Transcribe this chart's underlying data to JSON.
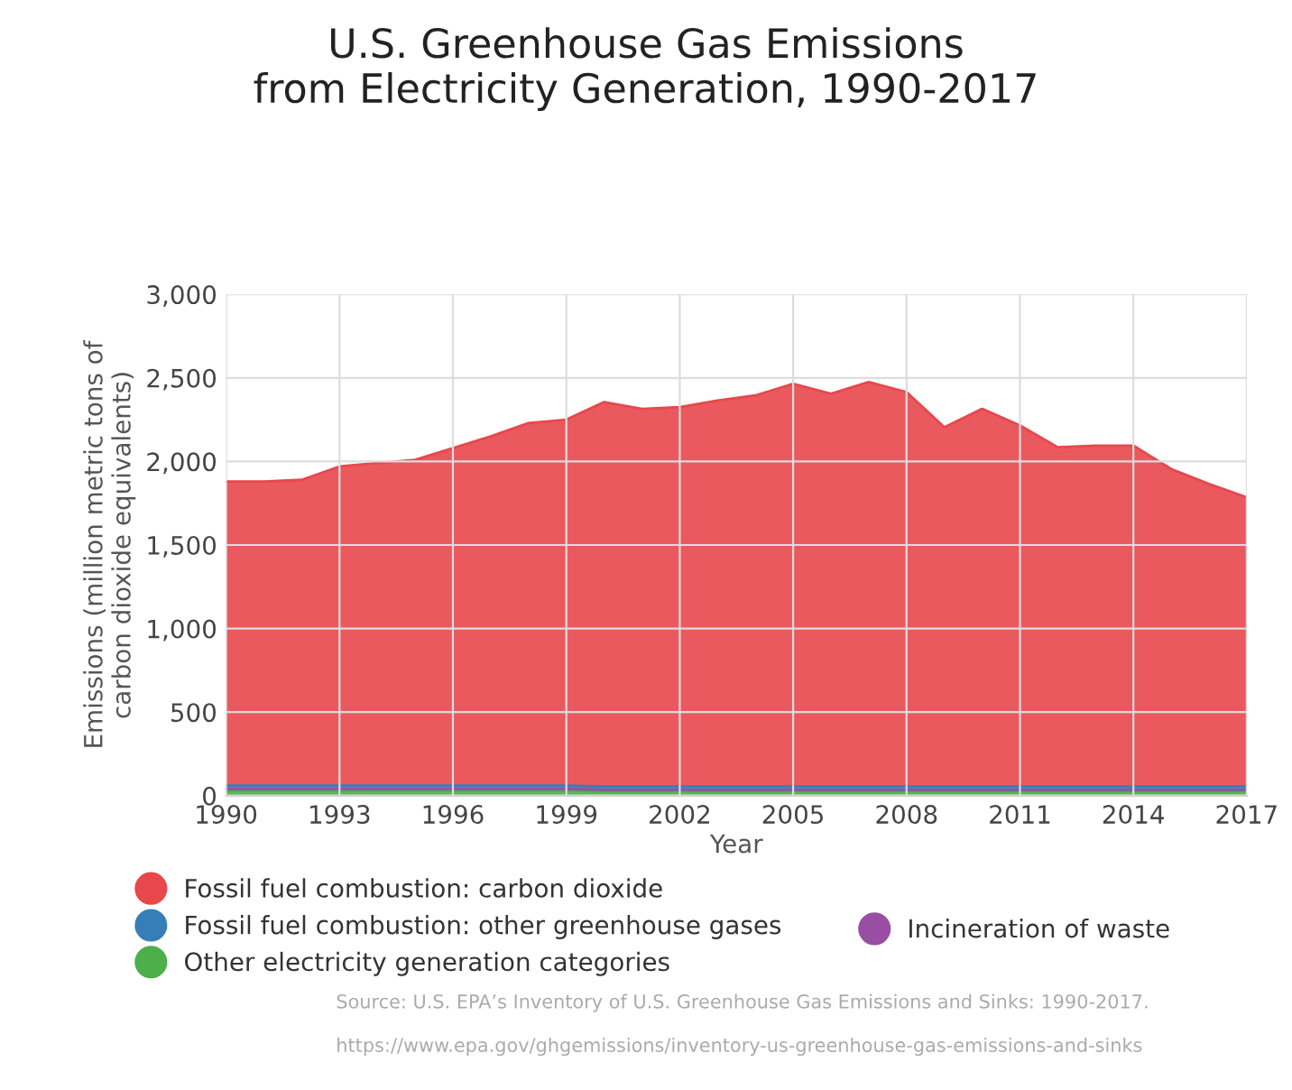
{
  "chart_data": {
    "type": "area",
    "stacked": true,
    "title": "U.S. Greenhouse Gas Emissions\nfrom Electricity Generation, 1990-2017",
    "xlabel": "Year",
    "ylabel": "Emissions (million metric tons of\ncarbon dioxide equivalents)",
    "x": [
      1990,
      1991,
      1992,
      1993,
      1994,
      1995,
      1996,
      1997,
      1998,
      1999,
      2000,
      2001,
      2002,
      2003,
      2004,
      2005,
      2006,
      2007,
      2008,
      2009,
      2010,
      2011,
      2012,
      2013,
      2014,
      2015,
      2016,
      2017
    ],
    "series": [
      {
        "name": "Other electricity generation categories",
        "color": "#4daf4a",
        "values": [
          30,
          30,
          30,
          30,
          30,
          30,
          30,
          30,
          30,
          30,
          25,
          25,
          25,
          25,
          25,
          25,
          25,
          25,
          25,
          25,
          25,
          25,
          25,
          25,
          25,
          25,
          25,
          25
        ]
      },
      {
        "name": "Incineration of waste",
        "color": "#984ea3",
        "values": [
          10,
          10,
          10,
          10,
          10,
          10,
          10,
          10,
          10,
          10,
          10,
          10,
          10,
          10,
          10,
          10,
          10,
          10,
          10,
          10,
          10,
          10,
          10,
          10,
          10,
          10,
          10,
          10
        ]
      },
      {
        "name": "Fossil fuel combustion: other greenhouse gases",
        "color": "#377eb8",
        "values": [
          20,
          20,
          20,
          20,
          20,
          20,
          20,
          20,
          20,
          20,
          20,
          20,
          20,
          20,
          20,
          20,
          20,
          20,
          20,
          20,
          20,
          20,
          20,
          20,
          20,
          20,
          20,
          20
        ]
      },
      {
        "name": "Fossil fuel combustion: carbon dioxide",
        "color": "#e8474c",
        "values": [
          1820,
          1820,
          1830,
          1910,
          1930,
          1950,
          2020,
          2090,
          2170,
          2190,
          2300,
          2260,
          2270,
          2310,
          2340,
          2410,
          2350,
          2420,
          2360,
          2150,
          2260,
          2160,
          2030,
          2040,
          2040,
          1900,
          1810,
          1730
        ]
      }
    ],
    "xlim": [
      1990,
      2017
    ],
    "xticks": [
      1990,
      1993,
      1996,
      1999,
      2002,
      2005,
      2008,
      2011,
      2014,
      2017
    ],
    "ylim": [
      0,
      3000
    ],
    "yticks": [
      {
        "value": 0,
        "label": "0"
      },
      {
        "value": 500,
        "label": "500"
      },
      {
        "value": 1000,
        "label": "1,000"
      },
      {
        "value": 1500,
        "label": "1,500"
      },
      {
        "value": 2000,
        "label": "2,000"
      },
      {
        "value": 2500,
        "label": "2,500"
      },
      {
        "value": 3000,
        "label": "3,000"
      }
    ],
    "grid": true,
    "legend": "bottom",
    "annotations": [
      "Source: U.S. EPA’s Inventory of U.S. Greenhouse Gas Emissions and Sinks: 1990-2017.",
      "https://www.epa.gov/ghgemissions/inventory-us-greenhouse-gas-emissions-and-sinks"
    ]
  }
}
